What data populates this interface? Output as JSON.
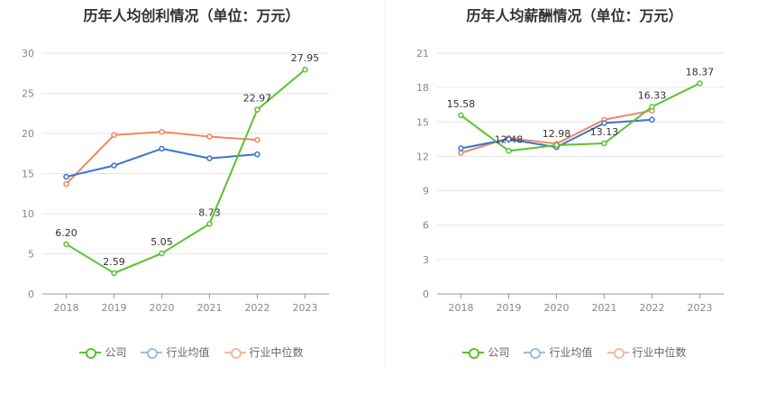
{
  "chart_data": [
    {
      "type": "line",
      "title": "历年人均创利情况（单位：万元）",
      "x": [
        "2018",
        "2019",
        "2020",
        "2021",
        "2022",
        "2023"
      ],
      "ylim": [
        0,
        30
      ],
      "yticks": [
        0,
        5,
        10,
        15,
        20,
        25,
        30
      ],
      "grid": true,
      "legend": "bottom-center",
      "series": [
        {
          "name": "公司",
          "color": "#5bc32e",
          "values": [
            6.2,
            2.59,
            5.05,
            8.73,
            22.97,
            27.95
          ],
          "labels": [
            "6.20",
            "2.59",
            "5.05",
            "8.73",
            "22.97",
            "27.95"
          ]
        },
        {
          "name": "行业均值",
          "color": "#3a73d4",
          "values": [
            14.6,
            16.0,
            18.1,
            16.9,
            17.4,
            null
          ]
        },
        {
          "name": "行业中位数",
          "color": "#f0875f",
          "values": [
            13.7,
            19.8,
            20.2,
            19.6,
            19.2,
            null
          ]
        }
      ]
    },
    {
      "type": "line",
      "title": "历年人均薪酬情况（单位：万元）",
      "x": [
        "2018",
        "2019",
        "2020",
        "2021",
        "2022",
        "2023"
      ],
      "ylim": [
        0,
        21
      ],
      "yticks": [
        0,
        3,
        6,
        9,
        12,
        15,
        18,
        21
      ],
      "grid": true,
      "legend": "bottom-center",
      "series": [
        {
          "name": "公司",
          "color": "#5bc32e",
          "values": [
            15.58,
            12.48,
            12.98,
            13.13,
            16.33,
            18.37
          ],
          "labels": [
            "15.58",
            "12.48",
            "12.98",
            "13.13",
            "16.33",
            "18.37"
          ]
        },
        {
          "name": "行业均值",
          "color": "#3a73d4",
          "values": [
            12.7,
            13.5,
            12.8,
            14.9,
            15.2,
            null
          ]
        },
        {
          "name": "行业中位数",
          "color": "#f0875f",
          "values": [
            12.3,
            13.6,
            13.1,
            15.2,
            16.0,
            null
          ]
        }
      ]
    }
  ]
}
